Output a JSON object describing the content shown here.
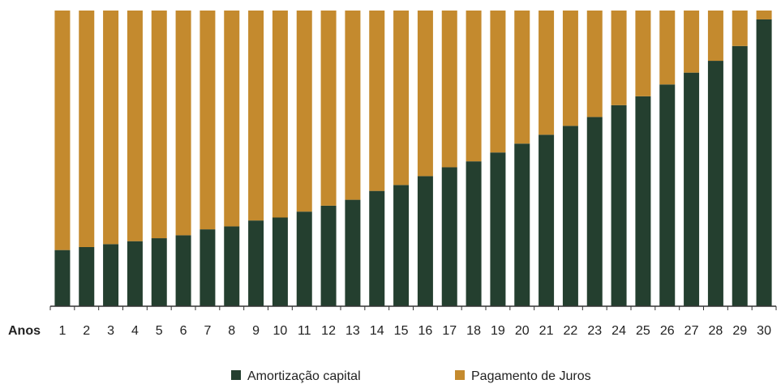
{
  "chart_data": {
    "type": "bar",
    "stacked": true,
    "normalized": true,
    "title": "",
    "xlabel": "Anos",
    "ylabel": "",
    "ylim": [
      0,
      100
    ],
    "grid": false,
    "legend_position": "bottom-center",
    "categories": [
      "1",
      "2",
      "3",
      "4",
      "5",
      "6",
      "7",
      "8",
      "9",
      "10",
      "11",
      "12",
      "13",
      "14",
      "15",
      "16",
      "17",
      "18",
      "19",
      "20",
      "21",
      "22",
      "23",
      "24",
      "25",
      "26",
      "27",
      "28",
      "29",
      "30"
    ],
    "series": [
      {
        "name": "Amortização capital",
        "color": "#243f2f",
        "values": [
          19,
          20,
          21,
          22,
          23,
          24,
          26,
          27,
          29,
          30,
          32,
          34,
          36,
          39,
          41,
          44,
          47,
          49,
          52,
          55,
          58,
          61,
          64,
          68,
          71,
          75,
          79,
          83,
          88,
          97
        ]
      },
      {
        "name": "Pagamento de Juros",
        "color": "#c48a2e",
        "values": [
          81,
          80,
          79,
          78,
          77,
          76,
          74,
          73,
          71,
          70,
          68,
          66,
          64,
          61,
          59,
          56,
          53,
          51,
          48,
          45,
          42,
          39,
          36,
          32,
          29,
          25,
          21,
          17,
          12,
          3
        ]
      }
    ]
  }
}
